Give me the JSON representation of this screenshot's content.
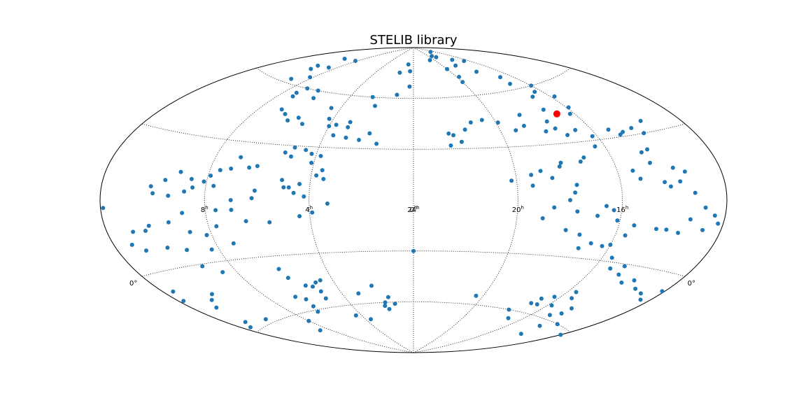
{
  "chart_data": {
    "type": "scatter",
    "projection": "aitoff",
    "title": "STELIB library",
    "grid": true,
    "colors": {
      "stars": "#1f77b4",
      "highlight": "#ff0000"
    },
    "ra_ticks": [
      {
        "value": 16,
        "label": "16",
        "sup": "h"
      },
      {
        "value": 20,
        "label": "20",
        "sup": "h"
      },
      {
        "value": 24,
        "label": "24",
        "sup": "h"
      },
      {
        "value": 0,
        "label": "0",
        "sup": "h"
      },
      {
        "value": 4,
        "label": "4",
        "sup": "h"
      },
      {
        "value": 8,
        "label": "8",
        "sup": "h"
      }
    ],
    "dec_ticks": [
      {
        "value": 0,
        "label": "0°",
        "side": "left"
      },
      {
        "value": 0,
        "label": "0°",
        "side": "right"
      }
    ],
    "highlight": {
      "ra": 16.8,
      "dec": 45
    },
    "stars": [
      [
        1.5,
        75
      ],
      [
        0.8,
        80
      ],
      [
        0.4,
        76
      ],
      [
        1.1,
        62
      ],
      [
        0.3,
        67
      ],
      [
        20.8,
        82
      ],
      [
        20.0,
        76
      ],
      [
        19.8,
        71
      ],
      [
        20.0,
        68
      ],
      [
        18.5,
        77
      ],
      [
        18.8,
        83
      ],
      [
        19.2,
        84
      ],
      [
        17.7,
        72
      ],
      [
        17.4,
        80
      ],
      [
        16.9,
        86
      ],
      [
        16.5,
        78
      ],
      [
        16.8,
        67
      ],
      [
        17.0,
        63
      ],
      [
        16.0,
        60
      ],
      [
        15.8,
        53
      ],
      [
        16.4,
        57
      ],
      [
        16.9,
        55
      ],
      [
        17.2,
        48
      ],
      [
        15.9,
        47
      ],
      [
        16.2,
        44
      ],
      [
        17.6,
        42
      ],
      [
        18.6,
        47
      ],
      [
        18.8,
        41
      ],
      [
        19.3,
        39
      ],
      [
        19.9,
        44
      ],
      [
        20.6,
        46
      ],
      [
        21.2,
        45
      ],
      [
        21.6,
        41
      ],
      [
        22.2,
        38
      ],
      [
        22.4,
        39
      ],
      [
        21.9,
        34
      ],
      [
        22.4,
        32
      ],
      [
        18.0,
        37
      ],
      [
        17.5,
        38
      ],
      [
        17.2,
        34
      ],
      [
        16.7,
        36
      ],
      [
        16.2,
        32
      ],
      [
        15.3,
        34
      ],
      [
        15.0,
        31
      ],
      [
        14.8,
        32
      ],
      [
        14.3,
        33
      ],
      [
        14.0,
        30
      ],
      [
        13.6,
        35
      ],
      [
        16.4,
        27
      ],
      [
        17.1,
        22
      ],
      [
        17.3,
        20
      ],
      [
        18.1,
        20
      ],
      [
        18.2,
        18
      ],
      [
        19.0,
        16
      ],
      [
        19.4,
        14
      ],
      [
        20.2,
        11
      ],
      [
        19.4,
        8
      ],
      [
        18.6,
        12
      ],
      [
        17.8,
        4
      ],
      [
        17.7,
        8
      ],
      [
        14.7,
        22
      ],
      [
        14.4,
        23
      ],
      [
        14.6,
        17
      ],
      [
        15.4,
        14
      ],
      [
        15.2,
        10
      ],
      [
        14.3,
        8
      ],
      [
        14.1,
        6
      ],
      [
        13.7,
        8
      ],
      [
        13.4,
        12
      ],
      [
        13.8,
        14
      ],
      [
        13.2,
        3
      ],
      [
        12.8,
        -3
      ],
      [
        12.4,
        -6
      ],
      [
        11.9,
        -3
      ],
      [
        12.2,
        -9
      ],
      [
        12.7,
        -12
      ],
      [
        13.3,
        -8
      ],
      [
        13.6,
        -14
      ],
      [
        14.1,
        -13
      ],
      [
        14.5,
        -13
      ],
      [
        15.4,
        -12
      ],
      [
        15.6,
        -17
      ],
      [
        16.1,
        -10
      ],
      [
        16.3,
        -5
      ],
      [
        16.6,
        -3
      ],
      [
        16.9,
        -8
      ],
      [
        17.7,
        -6
      ],
      [
        18.0,
        0
      ],
      [
        18.6,
        -4
      ],
      [
        19.0,
        -10
      ],
      [
        18.0,
        -16
      ],
      [
        17.4,
        -18
      ],
      [
        17.2,
        -25
      ],
      [
        16.8,
        -22
      ],
      [
        16.3,
        -23
      ],
      [
        16.0,
        -22
      ],
      [
        15.6,
        -28
      ],
      [
        15.3,
        -33
      ],
      [
        14.8,
        -31
      ],
      [
        14.7,
        -35
      ],
      [
        14.2,
        -38
      ],
      [
        13.8,
        -36
      ],
      [
        13.3,
        -39
      ],
      [
        12.8,
        -40
      ],
      [
        12.4,
        -42
      ],
      [
        12.1,
        -37
      ],
      [
        11.8,
        -42
      ],
      [
        11.6,
        -38
      ],
      [
        11.0,
        -48
      ],
      [
        10.6,
        -45
      ],
      [
        10.2,
        -43
      ],
      [
        11.2,
        -56
      ],
      [
        10.0,
        -58
      ],
      [
        16.6,
        -55
      ],
      [
        16.8,
        -52
      ],
      [
        16.3,
        -50
      ],
      [
        17.0,
        -55
      ],
      [
        15.8,
        -54
      ],
      [
        15.6,
        -46
      ],
      [
        15.4,
        -49
      ],
      [
        15.0,
        -58
      ],
      [
        14.6,
        -56
      ],
      [
        14.6,
        -53
      ],
      [
        14.2,
        -63
      ],
      [
        13.6,
        -60
      ],
      [
        13.9,
        -68
      ],
      [
        20.4,
        -55
      ],
      [
        17.7,
        -60
      ],
      [
        16.9,
        -64
      ],
      [
        9.6,
        70
      ],
      [
        9.6,
        76
      ],
      [
        8.2,
        77
      ],
      [
        8.6,
        71
      ],
      [
        9.4,
        68
      ],
      [
        9.0,
        62
      ],
      [
        8.2,
        65
      ],
      [
        7.1,
        60
      ],
      [
        7.3,
        57
      ],
      [
        7.2,
        55
      ],
      [
        6.3,
        60
      ],
      [
        6.0,
        56
      ],
      [
        6.9,
        48
      ],
      [
        6.5,
        46
      ],
      [
        6.1,
        43
      ],
      [
        5.7,
        45
      ],
      [
        5.3,
        42
      ],
      [
        4.5,
        52
      ],
      [
        4.2,
        46
      ],
      [
        4.0,
        42
      ],
      [
        3.7,
        43
      ],
      [
        2.6,
        60
      ],
      [
        2.2,
        55
      ],
      [
        3.1,
        45
      ],
      [
        3.1,
        42
      ],
      [
        3.6,
        37
      ],
      [
        3.0,
        36
      ],
      [
        2.4,
        35
      ],
      [
        2.0,
        39
      ],
      [
        1.6,
        33
      ],
      [
        3.8,
        25
      ],
      [
        4.2,
        26
      ],
      [
        4.5,
        28
      ],
      [
        5.0,
        29
      ],
      [
        5.0,
        24
      ],
      [
        5.3,
        26
      ],
      [
        4.1,
        21
      ],
      [
        3.6,
        17
      ],
      [
        3.5,
        12
      ],
      [
        3.8,
        14
      ],
      [
        4.4,
        9
      ],
      [
        4.8,
        7
      ],
      [
        6.2,
        18
      ],
      [
        6.5,
        17
      ],
      [
        7.0,
        22
      ],
      [
        7.2,
        16
      ],
      [
        7.6,
        15
      ],
      [
        7.9,
        12
      ],
      [
        8.6,
        10
      ],
      [
        9.1,
        13
      ],
      [
        9.6,
        9
      ],
      [
        10.1,
        6
      ],
      [
        10.0,
        3
      ],
      [
        9.4,
        2
      ],
      [
        8.8,
        4
      ],
      [
        8.5,
        6
      ],
      [
        8.1,
        9
      ],
      [
        7.7,
        7
      ],
      [
        6.1,
        5
      ],
      [
        5.0,
        7
      ],
      [
        5.1,
        11
      ],
      [
        6.2,
        1
      ],
      [
        7.0,
        0
      ],
      [
        4.6,
        4
      ],
      [
        4.2,
        2
      ],
      [
        3.3,
        -2
      ],
      [
        3.9,
        -7
      ],
      [
        4.4,
        -9
      ],
      [
        5.6,
        -12
      ],
      [
        6.5,
        -11
      ],
      [
        7.0,
        -5
      ],
      [
        7.6,
        -5
      ],
      [
        7.7,
        -13
      ],
      [
        8.2,
        -17
      ],
      [
        8.8,
        -15
      ],
      [
        8.9,
        -6
      ],
      [
        9.5,
        -10
      ],
      [
        10.3,
        -11
      ],
      [
        10.5,
        -13
      ],
      [
        11.0,
        -13
      ],
      [
        11.3,
        -18
      ],
      [
        10.9,
        -21
      ],
      [
        10.0,
        -21
      ],
      [
        9.3,
        -23
      ],
      [
        8.3,
        -24
      ],
      [
        9.2,
        -31
      ],
      [
        8.6,
        -35
      ],
      [
        7.3,
        -22
      ],
      [
        6.1,
        -37
      ],
      [
        6.0,
        -42
      ],
      [
        5.2,
        -48
      ],
      [
        4.9,
        -46
      ],
      [
        4.6,
        -45
      ],
      [
        5.0,
        -51
      ],
      [
        5.5,
        -47
      ],
      [
        5.1,
        -55
      ],
      [
        6.6,
        -52
      ],
      [
        6.2,
        -54
      ],
      [
        6.5,
        -61
      ],
      [
        6.3,
        -58
      ],
      [
        8.0,
        -64
      ],
      [
        8.7,
        -69
      ],
      [
        4.4,
        -66
      ],
      [
        3.6,
        -69
      ],
      [
        2.2,
        -50
      ],
      [
        1.8,
        -60
      ],
      [
        1.7,
        -64
      ],
      [
        1.9,
        -62
      ],
      [
        1.2,
        -61
      ],
      [
        1.5,
        -57
      ],
      [
        3.1,
        -54
      ],
      [
        12.0,
        -62
      ],
      [
        11.6,
        -58
      ],
      [
        0.0,
        -30
      ]
    ]
  }
}
